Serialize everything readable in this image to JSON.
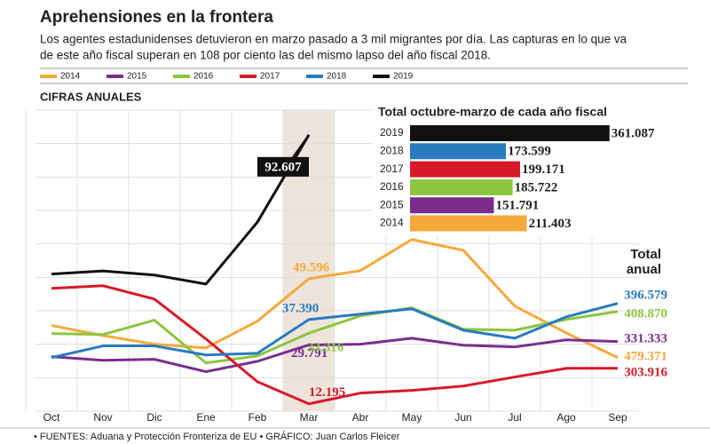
{
  "header": {
    "title": "Aprehensiones en la frontera",
    "subtitle_lines": [
      "Los agentes estadunidenses detuvieron en marzo pasado a 3 mil migrantes por día. Las capturas en lo que va",
      "de este año fiscal superan en 108 por ciento las del mismo lapso del año fiscal 2018."
    ],
    "section": "CIFRAS ANUALES",
    "total_heading": [
      "Total",
      "anual"
    ]
  },
  "chart_data": [
    {
      "type": "line",
      "categories": [
        "Oct",
        "Nov",
        "Dic",
        "Ene",
        "Feb",
        "Mar",
        "Abr",
        "May",
        "Jun",
        "Jul",
        "Ago",
        "Sep"
      ],
      "ylim": [
        10000,
        100000
      ],
      "yticks": [
        10000,
        20000,
        30000,
        40000,
        50000,
        60000,
        70000,
        80000,
        90000,
        100000
      ],
      "grid": true,
      "highlight_category": "Mar",
      "series": [
        {
          "name": "2014",
          "color": "#f5a93b",
          "values": [
            35600,
            32600,
            30000,
            28900,
            36900,
            49596,
            52000,
            61300,
            58100,
            41400,
            33400,
            26000
          ],
          "value_labels": [
            null,
            null,
            null,
            null,
            null,
            "49.596",
            null,
            null,
            null,
            null,
            null,
            null
          ],
          "total": 479371,
          "total_label": "479.371"
        },
        {
          "name": "2015",
          "color": "#7b2d8e",
          "values": [
            26300,
            25200,
            25500,
            21800,
            24900,
            29791,
            30000,
            31800,
            29700,
            29200,
            31300,
            30800
          ],
          "value_labels": [
            null,
            null,
            null,
            null,
            null,
            "29.791",
            null,
            null,
            null,
            null,
            null,
            null
          ],
          "total": 331333,
          "total_label": "331.333"
        },
        {
          "name": "2016",
          "color": "#8cc63f",
          "values": [
            33200,
            32900,
            37200,
            24400,
            26500,
            33316,
            38500,
            40900,
            34500,
            34200,
            37400,
            39800
          ],
          "value_labels": [
            null,
            null,
            null,
            null,
            null,
            "33.316",
            null,
            null,
            null,
            null,
            null,
            null
          ],
          "total": 408870,
          "total_label": "408.870"
        },
        {
          "name": "2017",
          "color": "#d7192a",
          "values": [
            46700,
            47500,
            43500,
            31600,
            18800,
            12195,
            15400,
            16200,
            17500,
            20200,
            22800,
            22800
          ],
          "value_labels": [
            null,
            null,
            null,
            null,
            null,
            "12.195",
            null,
            null,
            null,
            null,
            null,
            null
          ],
          "total": 303916,
          "total_label": "303.916"
        },
        {
          "name": "2018",
          "color": "#2a7bbf",
          "values": [
            26000,
            29500,
            29500,
            26800,
            27300,
            37390,
            39000,
            40600,
            34200,
            31800,
            38200,
            42200
          ],
          "value_labels": [
            null,
            null,
            null,
            null,
            null,
            "37.390",
            null,
            null,
            null,
            null,
            null,
            null
          ],
          "total": 396579,
          "total_label": "396.579"
        },
        {
          "name": "2019",
          "color": "#111111",
          "values": [
            51000,
            51900,
            50700,
            48000,
            66500,
            92607,
            null,
            null,
            null,
            null,
            null,
            null
          ],
          "value_labels": [
            null,
            null,
            null,
            null,
            null,
            "92.607",
            null,
            null,
            null,
            null,
            null,
            null
          ]
        }
      ]
    },
    {
      "type": "bar",
      "orientation": "horizontal",
      "title": "Total octubre-marzo de cada año fiscal",
      "categories": [
        "2019",
        "2018",
        "2017",
        "2016",
        "2015",
        "2014"
      ],
      "values": [
        361087,
        173599,
        199171,
        185722,
        151791,
        211403
      ],
      "value_labels": [
        "361.087",
        "173.599",
        "199.171",
        "185.722",
        "151.791",
        "211.403"
      ],
      "colors": [
        "#111111",
        "#2a7bbf",
        "#d7192a",
        "#8cc63f",
        "#7b2d8e",
        "#f5a93b"
      ],
      "xlim": [
        0,
        400000
      ]
    }
  ],
  "footer": {
    "source": "• FUENTES: Aduana y Protección Fronteriza de EU • GRÁFICO: Juan Carlos Fleicer"
  }
}
